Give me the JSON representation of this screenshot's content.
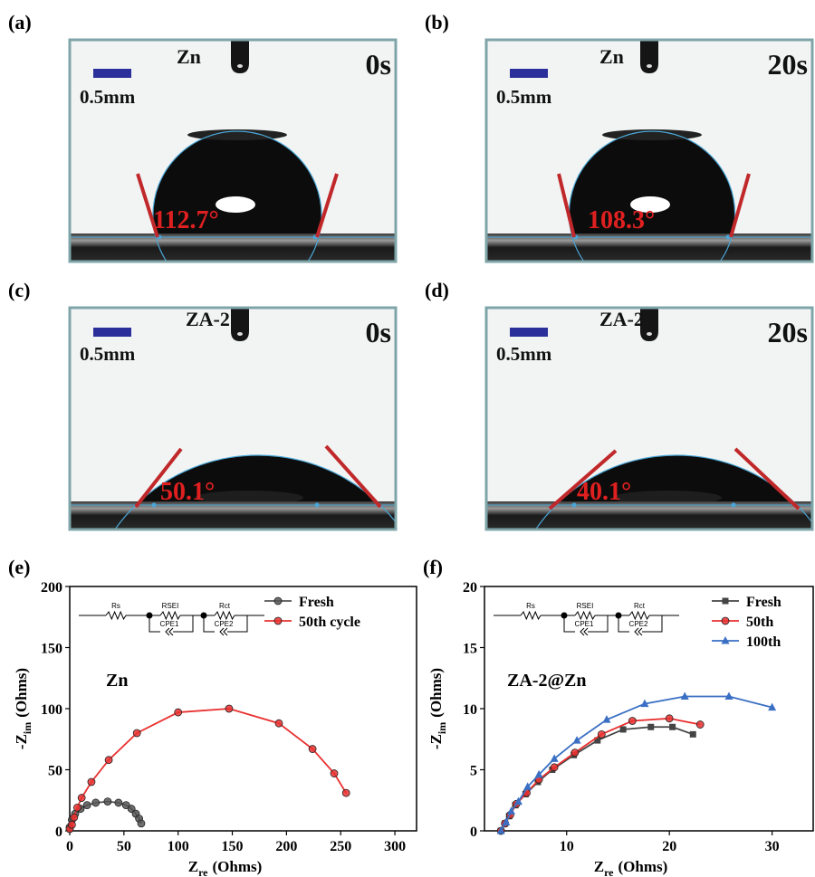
{
  "panels": [
    {
      "label": "(a)",
      "sample": "Zn",
      "time": "0s",
      "scale": "0.5mm",
      "angle": "112.7°"
    },
    {
      "label": "(b)",
      "sample": "Zn",
      "time": "20s",
      "scale": "0.5mm",
      "angle": "108.3°"
    },
    {
      "label": "(c)",
      "sample": "ZA-2",
      "time": "0s",
      "scale": "0.5mm",
      "angle": "50.1°"
    },
    {
      "label": "(d)",
      "sample": "ZA-2",
      "time": "20s",
      "scale": "0.5mm",
      "angle": "40.1°"
    }
  ],
  "chart_data": [
    {
      "type": "line",
      "panel_label": "(e)",
      "annotation": "Zn",
      "x_label": {
        "base": "Z",
        "sub": "re",
        "unit": "(Ohms)"
      },
      "y_label": {
        "base": "-Z",
        "sub": "im",
        "unit": "(Ohms)"
      },
      "circuit_labels": [
        "Rs",
        "RSEI",
        "Rct",
        "CPE1",
        "CPE2"
      ],
      "xlim": [
        0,
        320
      ],
      "xticks": [
        0,
        50,
        100,
        150,
        200,
        250,
        300
      ],
      "ylim": [
        0,
        200
      ],
      "yticks": [
        0,
        50,
        100,
        150,
        200
      ],
      "legend": "upper right",
      "series": [
        {
          "name": "Fresh",
          "color": "#555555",
          "marker": "circle",
          "x": [
            0,
            2,
            5,
            10,
            16,
            24,
            35,
            45,
            52,
            57,
            61,
            64,
            66
          ],
          "values": [
            3,
            9,
            14,
            18,
            21,
            23,
            24,
            23,
            21,
            18,
            14,
            10,
            6
          ]
        },
        {
          "name": "50th cycle",
          "color": "#e8302f",
          "marker": "circle",
          "x": [
            0,
            2,
            4,
            7,
            11,
            20,
            36,
            62,
            100,
            147,
            193,
            224,
            244,
            255
          ],
          "values": [
            1.5,
            5,
            11,
            19,
            27,
            40,
            58,
            80,
            97,
            100,
            88,
            67,
            47,
            31
          ]
        }
      ]
    },
    {
      "type": "line",
      "panel_label": "(f)",
      "annotation": "ZA-2@Zn",
      "x_label": {
        "base": "Z",
        "sub": "re",
        "unit": "(Ohms)"
      },
      "y_label": {
        "base": "-Z",
        "sub": "im",
        "unit": "(Ohms)"
      },
      "circuit_labels": [
        "Rs",
        "RSEI",
        "Rct",
        "CPE1",
        "CPE2"
      ],
      "xlim": [
        2,
        34
      ],
      "xticks": [
        10,
        20,
        30
      ],
      "ylim": [
        0,
        20
      ],
      "yticks": [
        0,
        5,
        10,
        15,
        20
      ],
      "legend": "upper right",
      "series": [
        {
          "name": "Fresh",
          "color": "#444444",
          "marker": "square",
          "x": [
            3.6,
            4.0,
            4.4,
            5.0,
            6.0,
            7.2,
            8.6,
            10.7,
            13.0,
            15.5,
            18.2,
            20.3,
            22.3
          ],
          "values": [
            0,
            0.6,
            1.2,
            2.1,
            3.0,
            4.0,
            5.0,
            6.2,
            7.4,
            8.3,
            8.5,
            8.5,
            7.9
          ]
        },
        {
          "name": "50th",
          "color": "#e8302f",
          "marker": "circle",
          "x": [
            3.6,
            4.0,
            4.5,
            5.1,
            6.1,
            7.3,
            8.8,
            10.8,
            13.4,
            16.4,
            20.0,
            23.0
          ],
          "values": [
            0,
            0.6,
            1.3,
            2.2,
            3.1,
            4.2,
            5.2,
            6.4,
            7.9,
            9.0,
            9.2,
            8.7
          ]
        },
        {
          "name": "100th",
          "color": "#3a6fc4",
          "marker": "triangle",
          "x": [
            3.6,
            4.1,
            4.6,
            5.3,
            6.2,
            7.3,
            8.8,
            11.0,
            13.9,
            17.6,
            21.5,
            25.8,
            30.0
          ],
          "values": [
            0,
            0.7,
            1.6,
            2.4,
            3.6,
            4.6,
            5.9,
            7.4,
            9.1,
            10.4,
            11.0,
            11.0,
            10.1
          ]
        }
      ]
    }
  ]
}
